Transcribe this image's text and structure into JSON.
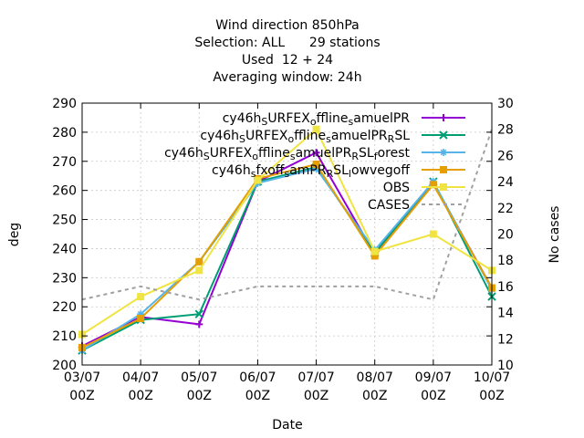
{
  "chart_data": {
    "type": "line",
    "title_lines": [
      "Wind direction 850hPa",
      "Selection: ALL      29 stations",
      "Used  12 + 24",
      "Averaging window: 24h"
    ],
    "xlabel": "Date",
    "ylabel": "deg",
    "y2label": "No cases",
    "categories": [
      "03/07 00Z",
      "04/07 00Z",
      "05/07 00Z",
      "06/07 00Z",
      "07/07 00Z",
      "08/07 00Z",
      "09/07 00Z",
      "10/07 00Z"
    ],
    "ylim": [
      200,
      290
    ],
    "yticks": [
      200,
      210,
      220,
      230,
      240,
      250,
      260,
      270,
      280,
      290
    ],
    "y2lim": [
      10,
      30
    ],
    "y2ticks": [
      10,
      12,
      14,
      16,
      18,
      20,
      22,
      24,
      26,
      28,
      30
    ],
    "grid": true,
    "legend_position": "top-right",
    "series": [
      {
        "name": "cy46h_SURFEX_offline_samuelPR",
        "legend_text": "cy46h_SURFEX_offline_samuelPR",
        "color": "#9400d3",
        "marker": "plus",
        "values": [
          206.5,
          216.5,
          214,
          263,
          273,
          238,
          262.5,
          226.5
        ]
      },
      {
        "name": "cy46h_SURFEX_offline_samuelPR_RSL",
        "legend_text": "cy46h_SURFEX_offline_samuelPR_RSL",
        "color": "#009e73",
        "marker": "x",
        "values": [
          205,
          215.5,
          217.5,
          263,
          268,
          238.5,
          263,
          223.5
        ]
      },
      {
        "name": "cy46h_SURFEX_offline_samuelPR_RSL_forest",
        "legend_text": "cy46h_SURFEX_offline_samuelPR_RSL_forest",
        "color": "#56b4e9",
        "marker": "star",
        "values": [
          205,
          217.5,
          235.5,
          262.5,
          267.5,
          239.5,
          263,
          226
        ]
      },
      {
        "name": "cy46h_sfxoff_samPR_RSL_lowvegoff",
        "legend_text": "cy46h_sfxoff_samPR_RSL_lowvegoff",
        "color": "#e69f00",
        "marker": "square",
        "values": [
          206,
          216,
          235.5,
          264,
          269,
          237.5,
          262,
          226.5
        ]
      },
      {
        "name": "OBS",
        "legend_text": "OBS",
        "color": "#f0e442",
        "marker": "square",
        "values": [
          210.5,
          223.5,
          232.5,
          263.5,
          281,
          239,
          245,
          232.5
        ]
      },
      {
        "name": "CASES",
        "legend_text": "CASES",
        "color": "#a0a0a0",
        "marker": "none",
        "axis": "y2",
        "dashed": true,
        "values": [
          15,
          16,
          15,
          16,
          16,
          16,
          15,
          28
        ]
      }
    ]
  }
}
